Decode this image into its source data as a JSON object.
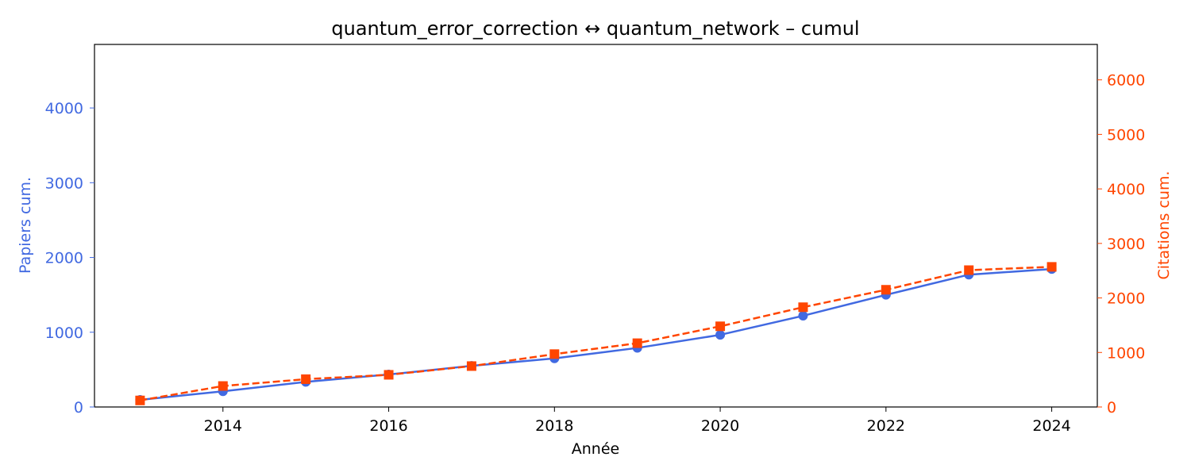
{
  "chart_data": {
    "type": "line",
    "title": "quantum_error_correction  ↔  quantum_network  –  cumul",
    "xlabel": "Année",
    "ylabel_left": "Papiers cum.",
    "ylabel_right": "Citations cum.",
    "x": [
      2013,
      2014,
      2015,
      2016,
      2017,
      2018,
      2019,
      2020,
      2021,
      2022,
      2023,
      2024
    ],
    "xlim": [
      2012.45,
      2024.55
    ],
    "xticks": [
      2014,
      2016,
      2018,
      2020,
      2022,
      2024
    ],
    "ylim_left": [
      0,
      4850
    ],
    "yticks_left": [
      0,
      1000,
      2000,
      3000,
      4000
    ],
    "ylim_right": [
      0,
      6650
    ],
    "yticks_right": [
      0,
      1000,
      2000,
      3000,
      4000,
      5000,
      6000
    ],
    "grid": false,
    "series": [
      {
        "axis": "left",
        "color": "#4169E1",
        "style": "solid",
        "marker": "circle",
        "values": [
          95,
          210,
          335,
          435,
          550,
          650,
          790,
          965,
          1220,
          1500,
          1770,
          1845
        ]
      },
      {
        "axis": "right",
        "color": "#FF4500",
        "style": "dashed",
        "marker": "square",
        "values": [
          120,
          385,
          510,
          590,
          750,
          970,
          1170,
          1480,
          1830,
          2150,
          2510,
          2570
        ]
      }
    ]
  }
}
